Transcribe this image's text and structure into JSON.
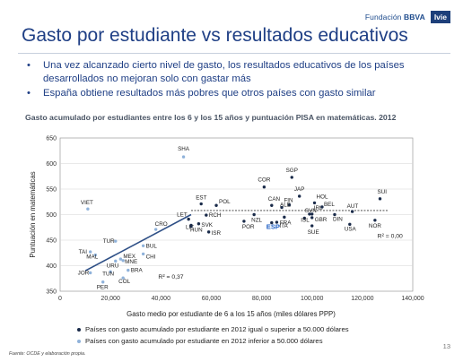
{
  "header": {
    "brand_prefix": "Fundación",
    "brand_name": "BBVA",
    "brand_badge": "Ivie"
  },
  "slide": {
    "title": "Gasto por estudiante vs resultados educativos",
    "bullets": [
      "Una vez alcanzado cierto nivel de gasto, los resultados educativos de los países desarrollados no mejoran solo con gastar más",
      "España obtiene resultados más pobres que otros países con gasto similar"
    ],
    "page_number": "13"
  },
  "chart_data": {
    "type": "scatter",
    "title": "Gasto acumulado por estudiantes entre los 6 y los 15 años y puntuación PISA en matemáticas. 2012",
    "xlabel": "Gasto medio por estudiante de 6 a los 15 años (miles dólares PPP)",
    "ylabel": "Puntuación en matemáticas",
    "xlim": [
      0,
      140000
    ],
    "ylim": [
      350,
      650
    ],
    "x_ticks": [
      "0",
      "20,000",
      "40,000",
      "60,000",
      "80,000",
      "100,000",
      "120,000",
      "140,000"
    ],
    "y_ticks": [
      "350",
      "400",
      "450",
      "500",
      "550",
      "600",
      "650"
    ],
    "grid": "horizontal",
    "colors": {
      "high": "#1a2b4a",
      "low": "#8fb2da",
      "trend": "#2e4f86",
      "flat_trend": "#333333"
    },
    "series": [
      {
        "name": "Países con gasto acumulado por estudiante en 2012 igual o superior a 50.000 dólares",
        "color": "#1a2b4a",
        "points": [
          {
            "label": "COR",
            "x": 81000,
            "y": 554
          },
          {
            "label": "SGP",
            "x": 92000,
            "y": 573
          },
          {
            "label": "JAP",
            "x": 95000,
            "y": 536
          },
          {
            "label": "HOL",
            "x": 101000,
            "y": 523
          },
          {
            "label": "SUI",
            "x": 127000,
            "y": 531
          },
          {
            "label": "EST",
            "x": 56000,
            "y": 521
          },
          {
            "label": "POL",
            "x": 62000,
            "y": 518
          },
          {
            "label": "CAN",
            "x": 84000,
            "y": 518
          },
          {
            "label": "FIN",
            "x": 91000,
            "y": 519
          },
          {
            "label": "BEL",
            "x": 104000,
            "y": 515
          },
          {
            "label": "ALE",
            "x": 88000,
            "y": 514
          },
          {
            "label": "AUT",
            "x": 116000,
            "y": 506
          },
          {
            "label": "IRL",
            "x": 100000,
            "y": 501
          },
          {
            "label": "DIN",
            "x": 109000,
            "y": 500
          },
          {
            "label": "RCH",
            "x": 58000,
            "y": 499
          },
          {
            "label": "NZL",
            "x": 77000,
            "y": 500
          },
          {
            "label": "FRA",
            "x": 89000,
            "y": 495
          },
          {
            "label": "GBR",
            "x": 100000,
            "y": 494
          },
          {
            "label": "SVK",
            "x": 55000,
            "y": 482
          },
          {
            "label": "POR",
            "x": 73000,
            "y": 487
          },
          {
            "label": "ITA",
            "x": 86000,
            "y": 485
          },
          {
            "label": "ESP",
            "x": 84000,
            "y": 484
          },
          {
            "label": "ISL",
            "x": 97000,
            "y": 493
          },
          {
            "label": "SVN",
            "x": 99000,
            "y": 501
          },
          {
            "label": "SUE",
            "x": 100000,
            "y": 478
          },
          {
            "label": "USA",
            "x": 115000,
            "y": 481
          },
          {
            "label": "NOR",
            "x": 125000,
            "y": 489
          },
          {
            "label": "ISR",
            "x": 59000,
            "y": 466
          },
          {
            "label": "LET",
            "x": 51000,
            "y": 491
          },
          {
            "label": "LIT",
            "x": 52000,
            "y": 479
          },
          {
            "label": "HUN",
            "x": 52000,
            "y": 477
          }
        ]
      },
      {
        "name": "Países con gasto acumulado por estudiante en 2012 inferior a 50.000 dólares",
        "color": "#8fb2da",
        "points": [
          {
            "label": "SHA",
            "x": 49000,
            "y": 613
          },
          {
            "label": "VIET",
            "x": 11000,
            "y": 511
          },
          {
            "label": "CRO",
            "x": 38000,
            "y": 471
          },
          {
            "label": "TUR",
            "x": 22000,
            "y": 448
          },
          {
            "label": "BUL",
            "x": 33000,
            "y": 439
          },
          {
            "label": "TAI",
            "x": 12000,
            "y": 427
          },
          {
            "label": "MAL",
            "x": 14000,
            "y": 421
          },
          {
            "label": "CHI",
            "x": 33000,
            "y": 423
          },
          {
            "label": "MEX",
            "x": 24000,
            "y": 413
          },
          {
            "label": "URU",
            "x": 22000,
            "y": 409
          },
          {
            "label": "MNE",
            "x": 25000,
            "y": 410
          },
          {
            "label": "BRA",
            "x": 27000,
            "y": 391
          },
          {
            "label": "TUN",
            "x": 20000,
            "y": 388
          },
          {
            "label": "COL",
            "x": 25000,
            "y": 376
          },
          {
            "label": "JOR",
            "x": 12000,
            "y": 386
          },
          {
            "label": "PER",
            "x": 17000,
            "y": 368
          }
        ]
      }
    ],
    "trend_lines": [
      {
        "label": "R² = 0,37",
        "from": [
          10000,
          390
        ],
        "to": [
          52000,
          500
        ]
      },
      {
        "label": "R² = 0,00",
        "from": [
          52000,
          508
        ],
        "to": [
          130000,
          508
        ]
      }
    ],
    "legend_position": "bottom"
  },
  "footer": {
    "source": "Fuente: OCDE y elaboración propia."
  }
}
